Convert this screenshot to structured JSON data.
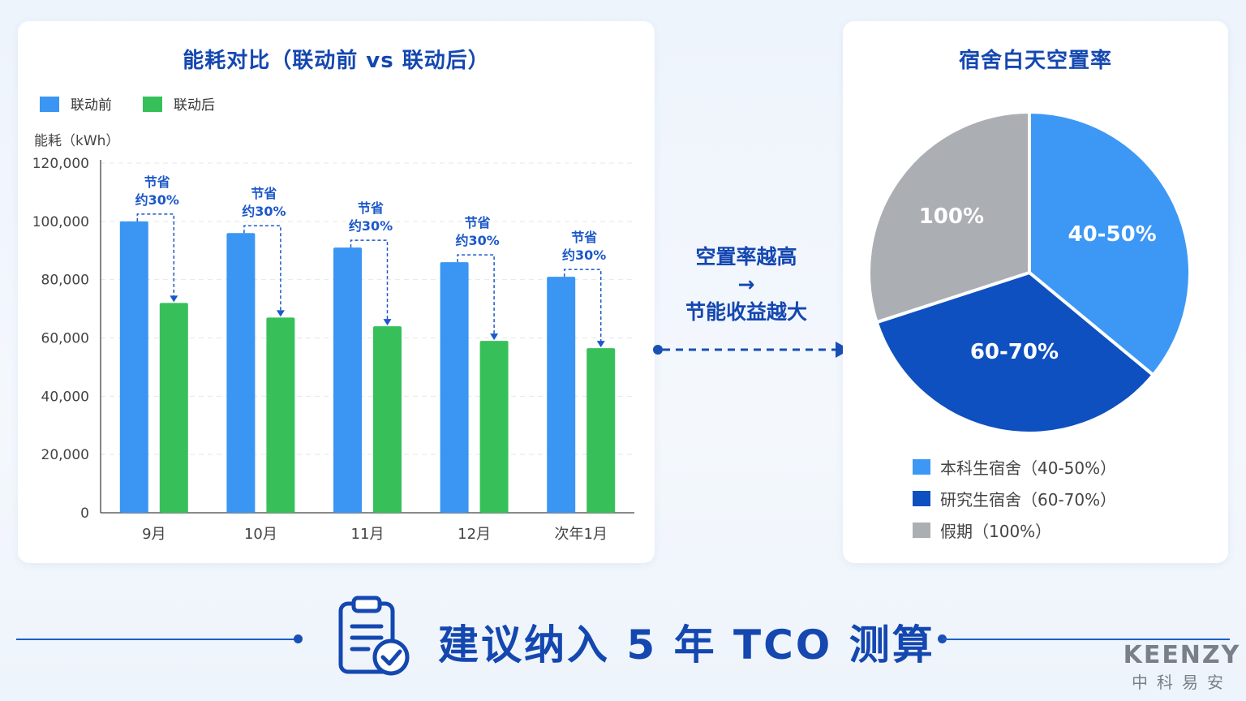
{
  "colors": {
    "before": "#3a96f2",
    "after": "#37c05a",
    "title": "#1447b0",
    "pie_light": "#3d98f5",
    "pie_dark": "#0f50c0",
    "pie_gray": "#abaeb3"
  },
  "chart_data": [
    {
      "type": "bar",
      "title": "能耗对比（联动前 vs 联动后）",
      "ylabel": "能耗（kWh）",
      "xlabel": "",
      "ylim": [
        0,
        120000
      ],
      "yticks": [
        "0",
        "20,000",
        "40,000",
        "60,000",
        "80,000",
        "100,000",
        "120,000"
      ],
      "categories": [
        "9月",
        "10月",
        "11月",
        "12月",
        "次年1月"
      ],
      "series": [
        {
          "name": "联动前",
          "values": [
            100000,
            96000,
            91000,
            86000,
            81000
          ]
        },
        {
          "name": "联动后",
          "values": [
            72000,
            67000,
            64000,
            59000,
            56500
          ]
        }
      ],
      "annotations": [
        {
          "line1": "节省",
          "line2": "约30%"
        },
        {
          "line1": "节省",
          "line2": "约30%"
        },
        {
          "line1": "节省",
          "line2": "约30%"
        },
        {
          "line1": "节省",
          "line2": "约30%"
        },
        {
          "line1": "节省",
          "line2": "约30%"
        }
      ],
      "legend": "top-left",
      "grid": true
    },
    {
      "type": "pie",
      "title": "宿舍白天空置率",
      "slices": [
        {
          "label": "40-50%",
          "legend": "本科生宿舍（40-50%）",
          "value": 36,
          "color": "#3d98f5"
        },
        {
          "label": "60-70%",
          "legend": "研究生宿舍（60-70%）",
          "value": 34,
          "color": "#0f50c0"
        },
        {
          "label": "100%",
          "legend": "假期（100%）",
          "value": 30,
          "color": "#abaeb3"
        }
      ],
      "legend": "bottom"
    }
  ],
  "middle": {
    "line1": "空置率越高",
    "arrow": "→",
    "line2": "节能收益越大"
  },
  "footer": {
    "text": "建议纳入 5 年 TCO 测算",
    "icon": "clipboard-check-icon"
  },
  "brand": {
    "en": "KEENZY",
    "cn": "中科易安"
  }
}
